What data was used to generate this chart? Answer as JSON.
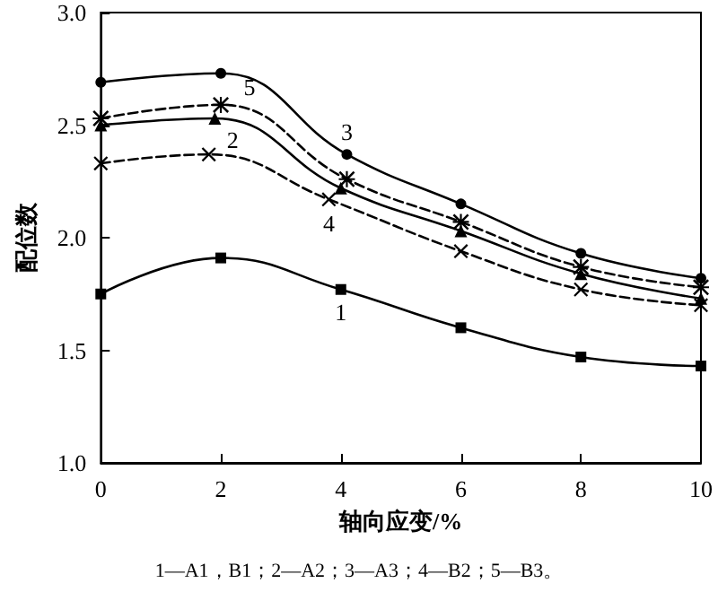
{
  "chart_data": {
    "type": "line",
    "xlabel": "轴向应变/%",
    "ylabel": "配位数",
    "xlim": [
      0,
      10
    ],
    "xticks": [
      0,
      2,
      4,
      6,
      8,
      10
    ],
    "ylim": [
      1.0,
      3.0
    ],
    "yticks": [
      {
        "value": 1.0,
        "label": "1.0"
      },
      {
        "value": 1.5,
        "label": "1.5"
      },
      {
        "value": 2.0,
        "label": "2.0"
      },
      {
        "value": 2.5,
        "label": "2.5"
      },
      {
        "value": 3.0,
        "label": "3.0"
      }
    ],
    "grid": false,
    "series": [
      {
        "name": "1",
        "color": "#000000",
        "marker": "square",
        "line_style": "solid",
        "x": [
          0,
          2,
          4,
          6,
          8,
          10
        ],
        "values": [
          1.75,
          1.91,
          1.77,
          1.6,
          1.47,
          1.43
        ]
      },
      {
        "name": "2",
        "color": "#000000",
        "marker": "triangle",
        "line_style": "solid",
        "x": [
          0,
          1.9,
          4,
          6,
          8,
          10
        ],
        "values": [
          2.5,
          2.53,
          2.22,
          2.03,
          1.84,
          1.73
        ]
      },
      {
        "name": "3",
        "color": "#000000",
        "marker": "circle",
        "line_style": "solid",
        "x": [
          0,
          2,
          4.1,
          6,
          8,
          10
        ],
        "values": [
          2.69,
          2.73,
          2.37,
          2.15,
          1.93,
          1.82
        ]
      },
      {
        "name": "4",
        "color": "#000000",
        "marker": "cross",
        "line_style": "dashed",
        "x": [
          0,
          1.8,
          3.8,
          6,
          8,
          10
        ],
        "values": [
          2.33,
          2.37,
          2.17,
          1.94,
          1.77,
          1.7
        ]
      },
      {
        "name": "5",
        "color": "#000000",
        "marker": "star",
        "line_style": "dashed",
        "x": [
          0,
          2,
          4.1,
          6,
          8,
          10
        ],
        "values": [
          2.53,
          2.59,
          2.26,
          2.07,
          1.87,
          1.78
        ]
      }
    ],
    "annotations": [
      "1—A1，B1；2—A2；3—A3；4—B2；5—B3。"
    ]
  }
}
